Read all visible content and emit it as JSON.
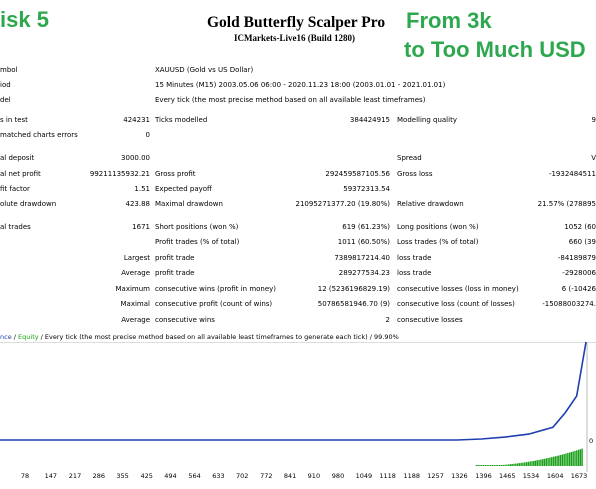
{
  "overlay": {
    "left": "isk 5",
    "right_line1": "From 3k",
    "right_line2": "to Too Much USD"
  },
  "report": {
    "title": "Gold Butterfly Scalper Pro",
    "subtitle": "ICMarkets-Live16 (Build 1280)"
  },
  "settings": {
    "symbol_label": "mbol",
    "symbol_value": "XAUUSD (Gold vs US Dollar)",
    "period_label": "iod",
    "period_value": "15 Minutes (M15) 2003.05.06 06:00 - 2020.11.23 18:00 (2003.01.01 - 2021.01.01)",
    "model_label": "del",
    "model_value": "Every tick (the most precise method based on all available least timeframes)"
  },
  "stats": {
    "bars_label": "s in test",
    "bars_value": "424231",
    "ticks_label": "Ticks modelled",
    "ticks_value": "384424915",
    "quality_label": "Modelling quality",
    "quality_value": "9",
    "mismatch_label": "matched charts errors",
    "mismatch_value": "0",
    "deposit_label": "al deposit",
    "deposit_value": "3000.00",
    "spread_label": "Spread",
    "spread_value": "V",
    "net_label": "al net profit",
    "net_value": "99211135932.21",
    "gross_profit_label": "Gross profit",
    "gross_profit_value": "292459587105.56",
    "gross_loss_label": "Gross loss",
    "gross_loss_value": "-1932484511",
    "pf_label": "fit factor",
    "pf_value": "1.51",
    "payoff_label": "Expected payoff",
    "payoff_value": "59372313.54",
    "abs_dd_label": "olute drawdown",
    "abs_dd_value": "423.88",
    "max_dd_label": "Maximal drawdown",
    "max_dd_value": "21095271377.20 (19.80%)",
    "rel_dd_label": "Relative drawdown",
    "rel_dd_value": "21.57% (278895",
    "trades_label": "al trades",
    "trades_value": "1671",
    "short_label": "Short positions (won %)",
    "short_value": "619 (61.23%)",
    "long_label": "Long positions (won %)",
    "long_value": "1052 (60",
    "pt_label": "Profit trades (% of total)",
    "pt_value": "1011 (60.50%)",
    "lt_label": "Loss trades (% of total)",
    "lt_value": "660 (39",
    "largest_label": "Largest",
    "largest_profit_label": "profit trade",
    "largest_profit_value": "7389817214.40",
    "largest_loss_label": "loss trade",
    "largest_loss_value": "-84189879",
    "average_label": "Average",
    "avg_profit_label": "profit trade",
    "avg_profit_value": "289277534.23",
    "avg_loss_label": "loss trade",
    "avg_loss_value": "-2928006",
    "maximum_label": "Maximum",
    "max_cw_label": "consecutive wins (profit in money)",
    "max_cw_value": "12 (5236196829.19)",
    "max_cl_label": "consecutive losses (loss in money)",
    "max_cl_value": "6 (-10426",
    "maximal_label": "Maximal",
    "maximal_cp_label": "consecutive profit (count of wins)",
    "maximal_cp_value": "50786581946.70 (9)",
    "maximal_cl_label": "consecutive loss (count of losses)",
    "maximal_cl_value": "-15088003274.",
    "average2_label": "Average",
    "avg_cw_label": "consecutive wins",
    "avg_cw_value": "2",
    "avg_cl_label": "consecutive losses",
    "avg_cl_value": ""
  },
  "legend": {
    "balance": "nce",
    "sep1": " / ",
    "equity": "Equity",
    "sep2": " / ",
    "rest": "Every tick (the most precise method based on all available least timeframes to generate each tick)",
    "sep3": " / ",
    "quality": "99.90%"
  },
  "chart_data": {
    "type": "line",
    "series": [
      {
        "name": "Balance",
        "color": "#1e3fb0",
        "x": [
          78,
          147,
          217,
          286,
          355,
          425,
          494,
          564,
          633,
          702,
          772,
          841,
          910,
          980,
          1049,
          1118,
          1188,
          1257,
          1326,
          1396,
          1465,
          1534,
          1604,
          1640,
          1673,
          1700
        ],
        "y": [
          0.0,
          0.0,
          0.0,
          0.0,
          0.0,
          0.0,
          0.0,
          0.0,
          0.0,
          0.0,
          0.0,
          0.0,
          0.0,
          0.0,
          0.0,
          0.0,
          0.0,
          0.0,
          0.0,
          0.01,
          0.03,
          0.06,
          0.13,
          0.28,
          0.45,
          1.0
        ]
      }
    ],
    "x_ticks": [
      "78",
      "147",
      "217",
      "286",
      "355",
      "425",
      "494",
      "564",
      "633",
      "702",
      "772",
      "841",
      "910",
      "980",
      "1049",
      "1118",
      "1188",
      "1257",
      "1326",
      "1396",
      "1465",
      "1534",
      "1604",
      "1673"
    ],
    "y_tick_labels": [
      "0"
    ],
    "grid": false,
    "volume_color": "#18a018"
  }
}
